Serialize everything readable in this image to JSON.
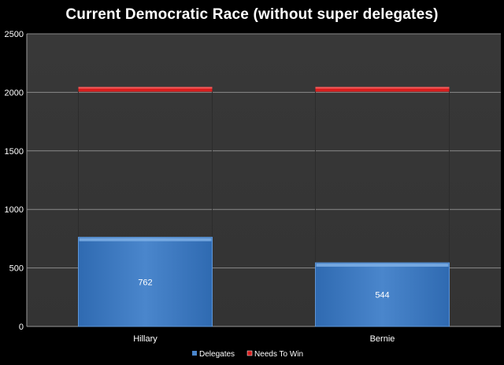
{
  "colors": {
    "page_background": "#000000",
    "plot_background": "#3a3a3a",
    "gridline": "#8a8a8a",
    "delegates": "#4a86cc",
    "needs_to_win": "#d81e1e"
  },
  "chart_data": {
    "type": "bar",
    "title": "Current Democratic Race (without super delegates)",
    "xlabel": "",
    "ylabel": "",
    "categories": [
      "Hillary",
      "Bernie"
    ],
    "series": [
      {
        "name": "Delegates",
        "values": [
          762,
          544
        ],
        "color": "#4a86cc",
        "data_labels": [
          "762",
          "544"
        ]
      },
      {
        "name": "Needs To Win",
        "values": [
          2026,
          2026
        ],
        "color": "#d81e1e"
      }
    ],
    "ylim": [
      0,
      2500
    ],
    "yticks": [
      0,
      500,
      1000,
      1500,
      2000,
      2500
    ],
    "ytick_labels": [
      "0",
      "500",
      "1000",
      "1500",
      "2000",
      "2500"
    ],
    "grid": true,
    "legend_position": "bottom"
  }
}
